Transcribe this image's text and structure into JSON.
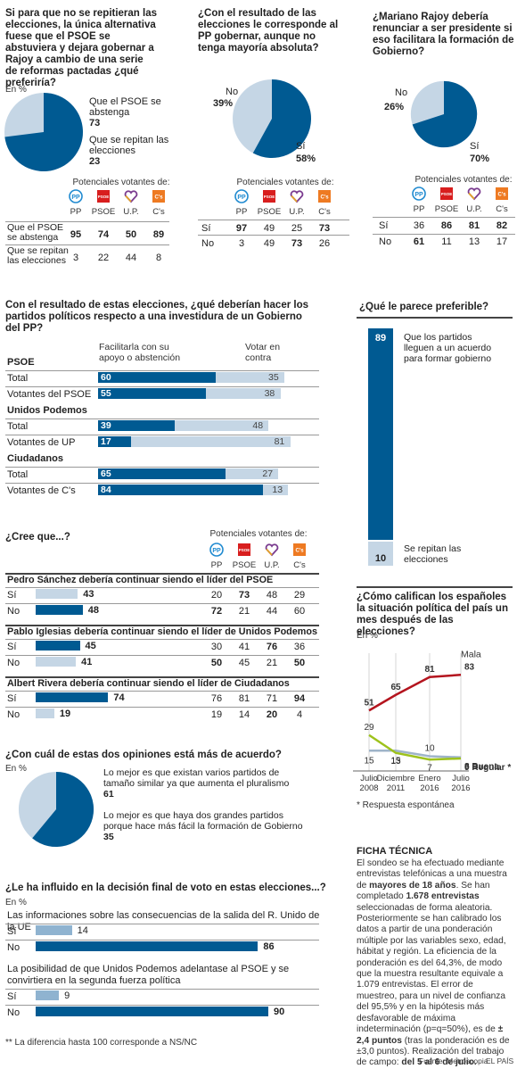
{
  "party_labels": [
    "PP",
    "PSOE",
    "U.P.",
    "C's"
  ],
  "potenciales": "Potenciales votantes de:",
  "colors": {
    "dark": "#005a92",
    "light": "#c5d6e5",
    "mid": "#8fb3d0",
    "red": "#b4141e",
    "green": "#9ec21c",
    "grey": "#9fb4c9"
  },
  "q1": {
    "title": "Si para que no se repitieran las elecciones, la única alternativa fuese que el PSOE se abstuviera y dejara gobernar a Rajoy a cambio de una serie de reformas pactadas ¿qué preferiría?",
    "unit": "En %",
    "s1_label": "Que el PSOE se abstenga",
    "s1_val": "73",
    "s2_label": "Que se repitan las elecciones",
    "s2_val": "23",
    "rows": [
      {
        "label": "Que el PSOE se abstenga",
        "values": [
          "95",
          "74",
          "50",
          "89"
        ]
      },
      {
        "label": "Que se repitan las elecciones",
        "values": [
          "3",
          "22",
          "44",
          "8"
        ]
      }
    ]
  },
  "q2": {
    "title": "¿Con el resultado de las elecciones le corresponde al PP gobernar, aunque no tenga mayoría absoluta?",
    "no_label": "No",
    "no_val": "39%",
    "si_label": "Sí",
    "si_val": "58%",
    "rows": [
      {
        "label": "Sí",
        "values": [
          "97",
          "49",
          "25",
          "73"
        ]
      },
      {
        "label": "No",
        "values": [
          "3",
          "49",
          "73",
          "26"
        ]
      }
    ]
  },
  "q3": {
    "title": "¿Mariano Rajoy debería renunciar a ser presidente si eso facilitara la formación de Gobierno?",
    "no_label": "No",
    "no_val": "26%",
    "si_label": "Sí",
    "si_val": "70%",
    "rows": [
      {
        "label": "Sí",
        "values": [
          "36",
          "86",
          "81",
          "82"
        ]
      },
      {
        "label": "No",
        "values": [
          "61",
          "11",
          "13",
          "17"
        ]
      }
    ]
  },
  "q4": {
    "title": "Con el resultado de estas elecciones, ¿qué deberían hacer los partidos políticos respecto a una investidura de un Gobierno del PP?",
    "col1": "Facilitarla con su apoyo o abstención",
    "col2": "Votar en contra",
    "groups": [
      {
        "name": "PSOE",
        "rows": [
          {
            "label": "Total",
            "a": "60",
            "b": "35"
          },
          {
            "label": "Votantes del PSOE",
            "a": "55",
            "b": "38"
          }
        ]
      },
      {
        "name": "Unidos Podemos",
        "rows": [
          {
            "label": "Total",
            "a": "39",
            "b": "48"
          },
          {
            "label": "Votantes de UP",
            "a": "17",
            "b": "81"
          }
        ]
      },
      {
        "name": "Ciudadanos",
        "rows": [
          {
            "label": "Total",
            "a": "65",
            "b": "27"
          },
          {
            "label": "Votantes de C's",
            "a": "84",
            "b": "13"
          }
        ]
      }
    ]
  },
  "q5": {
    "title": "¿Qué le parece preferible?",
    "v1": "89",
    "l1": "Que los partidos lleguen a un acuerdo para formar gobierno",
    "v2": "10",
    "l2": "Se repitan las elecciones"
  },
  "q6": {
    "title": "¿Cree que...?",
    "groups": [
      {
        "name": "Pedro Sánchez debería continuar siendo el líder del PSOE",
        "si": "43",
        "no": "48",
        "si_p": [
          "20",
          "73",
          "48",
          "29"
        ],
        "no_p": [
          "72",
          "21",
          "44",
          "60"
        ]
      },
      {
        "name": "Pablo Iglesias debería continuar siendo el líder de Unidos Podemos",
        "si": "45",
        "no": "41",
        "si_p": [
          "30",
          "41",
          "76",
          "36"
        ],
        "no_p": [
          "50",
          "45",
          "21",
          "50"
        ]
      },
      {
        "name": "Albert Rivera debería continuar siendo el líder de Ciudadanos",
        "si": "74",
        "no": "19",
        "si_p": [
          "76",
          "81",
          "71",
          "94"
        ],
        "no_p": [
          "19",
          "14",
          "20",
          "4"
        ]
      }
    ],
    "si": "Sí",
    "no": "No"
  },
  "q7": {
    "title": "¿Cómo califican los españoles la situación política del país un mes después de las elecciones?",
    "unit": "En %",
    "x_labels": [
      [
        "Julio",
        "2008"
      ],
      [
        "Diciembre",
        "2011"
      ],
      [
        "Enero",
        "2016"
      ],
      [
        "Julio",
        "2016"
      ]
    ],
    "series": [
      {
        "name": "Mala",
        "values": [
          51,
          65,
          81,
          83
        ]
      },
      {
        "name": "Regular *",
        "values": [
          15,
          15,
          10,
          9
        ]
      },
      {
        "name": "Buena",
        "values": [
          29,
          13,
          7,
          8
        ]
      }
    ],
    "note": "* Respuesta espontánea"
  },
  "q8": {
    "title": "¿Con cuál de estas dos opiniones está más de acuerdo?",
    "unit": "En %",
    "l1": "Lo mejor es que existan varios partidos de tamaño similar ya que aumenta el pluralismo",
    "v1": "61",
    "l2": "Lo mejor es que haya dos grandes partidos porque hace más fácil la formación de Gobierno",
    "v2": "35"
  },
  "q9": {
    "title": "¿Le ha influido en la decisión final de voto en estas elecciones...?",
    "unit": "En %",
    "items": [
      {
        "text": "Las informaciones sobre las consecuencias de la salida del R. Unido de la UE",
        "si": "14",
        "no": "86"
      },
      {
        "text": "La posibilidad de que Unidos Podemos adelantase al PSOE y se convirtiera en la segunda fuerza política",
        "si": "9",
        "no": "90"
      }
    ],
    "si": "Sí",
    "no": "No"
  },
  "footnote": "** La diferencia hasta 100 corresponde a NS/NC",
  "ficha": {
    "title": "FICHA TÉCNICA",
    "p1": "El sondeo se ha efectuado mediante entrevistas telefónicas a una muestra de ",
    "b1": "mayores de 18 años",
    "p2": ". Se han completado ",
    "b2": "1.678 entrevistas",
    "p3": " seleccionadas de forma aleatoria. Posteriormente se han calibrado los datos a partir de una ponderación múltiple por las variables sexo, edad, hábitat y región. La eficiencia de la ponderación es del 64,3%, de modo que la muestra resultante equivale a 1.079 entrevistas. El error de muestreo, para un nivel de confianza del 95,5%  y en la hipótesis más desfavorable de máxima indeterminación (p=q=50%), es de ",
    "b3": "± 2,4 puntos",
    "p4": " (tras la ponderación es de ±3,0 puntos). Realización del trabajo de campo: ",
    "b4": "del 5 al 6 de julio."
  },
  "source": "Fuente: Metroscopia.",
  "credit": "EL PAÍS",
  "chart_data": [
    {
      "type": "pie",
      "title": "Si para que no se repitieran las elecciones... ¿qué preferiría?",
      "categories": [
        "Que el PSOE se abstenga",
        "Que se repitan las elecciones"
      ],
      "values": [
        73,
        23
      ]
    },
    {
      "type": "pie",
      "title": "¿Con el resultado de las elecciones le corresponde al PP gobernar...?",
      "categories": [
        "Sí",
        "No"
      ],
      "values": [
        58,
        39
      ]
    },
    {
      "type": "pie",
      "title": "¿Mariano Rajoy debería renunciar...?",
      "categories": [
        "Sí",
        "No"
      ],
      "values": [
        70,
        26
      ]
    },
    {
      "type": "bar",
      "title": "Investidura de un Gobierno del PP",
      "categories": [
        "PSOE Total",
        "Votantes del PSOE",
        "UP Total",
        "Votantes de UP",
        "Cs Total",
        "Votantes de C's"
      ],
      "series": [
        {
          "name": "Facilitarla con su apoyo o abstención",
          "values": [
            60,
            55,
            39,
            17,
            65,
            84
          ]
        },
        {
          "name": "Votar en contra",
          "values": [
            35,
            38,
            48,
            81,
            27,
            13
          ]
        }
      ]
    },
    {
      "type": "bar",
      "title": "¿Qué le parece preferible?",
      "categories": [
        "Que los partidos lleguen a un acuerdo para formar gobierno",
        "Se repitan las elecciones"
      ],
      "values": [
        89,
        10
      ]
    },
    {
      "type": "line",
      "title": "¿Cómo califican los españoles la situación política...?",
      "x": [
        "Julio 2008",
        "Diciembre 2011",
        "Enero 2016",
        "Julio 2016"
      ],
      "series": [
        {
          "name": "Mala",
          "values": [
            51,
            65,
            81,
            83
          ]
        },
        {
          "name": "Regular *",
          "values": [
            15,
            15,
            10,
            9
          ]
        },
        {
          "name": "Buena",
          "values": [
            29,
            13,
            7,
            8
          ]
        }
      ]
    },
    {
      "type": "pie",
      "title": "¿Con cuál de estas dos opiniones está más de acuerdo?",
      "values": [
        61,
        35
      ]
    },
    {
      "type": "bar",
      "title": "¿Le ha influido...?",
      "categories": [
        "Brexit Sí",
        "Brexit No",
        "Podemos Sí",
        "Podemos No"
      ],
      "values": [
        14,
        86,
        9,
        90
      ]
    }
  ]
}
